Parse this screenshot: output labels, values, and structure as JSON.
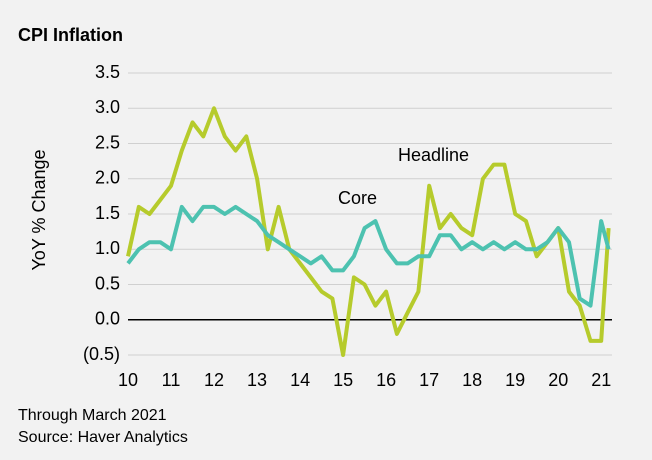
{
  "chart_data": {
    "type": "line",
    "title": "CPI Inflation",
    "y_label": "YoY % Change",
    "notes": [
      "Through March 2021",
      "Source: Haver Analytics"
    ],
    "annotations": [
      "Headline",
      "Core"
    ],
    "x": [
      2010,
      2010.25,
      2010.5,
      2010.75,
      2011,
      2011.25,
      2011.5,
      2011.75,
      2012,
      2012.25,
      2012.5,
      2012.75,
      2013,
      2013.25,
      2013.5,
      2013.75,
      2014,
      2014.25,
      2014.5,
      2014.75,
      2015,
      2015.25,
      2015.5,
      2015.75,
      2016,
      2016.25,
      2016.5,
      2016.75,
      2017,
      2017.25,
      2017.5,
      2017.75,
      2018,
      2018.25,
      2018.5,
      2018.75,
      2019,
      2019.25,
      2019.5,
      2019.75,
      2020,
      2020.25,
      2020.5,
      2020.75,
      2021,
      2021.17
    ],
    "series": [
      {
        "name": "Headline",
        "color": "#b6cb2c",
        "values": [
          0.9,
          1.6,
          1.5,
          1.7,
          1.9,
          2.4,
          2.8,
          2.6,
          3.0,
          2.6,
          2.4,
          2.6,
          2.0,
          1.0,
          1.6,
          1.0,
          0.8,
          0.6,
          0.4,
          0.3,
          -0.5,
          0.6,
          0.5,
          0.2,
          0.4,
          -0.2,
          0.1,
          0.4,
          1.9,
          1.3,
          1.5,
          1.3,
          1.2,
          2.0,
          2.2,
          2.2,
          1.5,
          1.4,
          0.9,
          1.1,
          1.3,
          0.4,
          0.2,
          -0.3,
          -0.3,
          1.3
        ]
      },
      {
        "name": "Core",
        "color": "#4dc2b0",
        "values": [
          0.8,
          1.0,
          1.1,
          1.1,
          1.0,
          1.6,
          1.4,
          1.6,
          1.6,
          1.5,
          1.6,
          1.5,
          1.4,
          1.2,
          1.1,
          1.0,
          0.9,
          0.8,
          0.9,
          0.7,
          0.7,
          0.9,
          1.3,
          1.4,
          1.0,
          0.8,
          0.8,
          0.9,
          0.9,
          1.2,
          1.2,
          1.0,
          1.1,
          1.0,
          1.1,
          1.0,
          1.1,
          1.0,
          1.0,
          1.1,
          1.3,
          1.1,
          0.3,
          0.2,
          1.4,
          1.0
        ]
      }
    ],
    "xlim": [
      2010,
      2021.25
    ],
    "xticks": [
      {
        "value": 2010,
        "label": "10"
      },
      {
        "value": 2011,
        "label": "11"
      },
      {
        "value": 2012,
        "label": "12"
      },
      {
        "value": 2013,
        "label": "13"
      },
      {
        "value": 2014,
        "label": "14"
      },
      {
        "value": 2015,
        "label": "15"
      },
      {
        "value": 2016,
        "label": "16"
      },
      {
        "value": 2017,
        "label": "17"
      },
      {
        "value": 2018,
        "label": "18"
      },
      {
        "value": 2019,
        "label": "19"
      },
      {
        "value": 2020,
        "label": "20"
      },
      {
        "value": 2021,
        "label": "21"
      }
    ],
    "ylim": [
      -0.5,
      3.5
    ],
    "yticks": [
      {
        "value": -0.5,
        "label": "(0.5)"
      },
      {
        "value": 0,
        "label": "0.0"
      },
      {
        "value": 0.5,
        "label": "0.5"
      },
      {
        "value": 1,
        "label": "1.0"
      },
      {
        "value": 1.5,
        "label": "1.5"
      },
      {
        "value": 2,
        "label": "2.0"
      },
      {
        "value": 2.5,
        "label": "2.5"
      },
      {
        "value": 3,
        "label": "3.0"
      },
      {
        "value": 3.5,
        "label": "3.5"
      }
    ],
    "grid": true
  }
}
